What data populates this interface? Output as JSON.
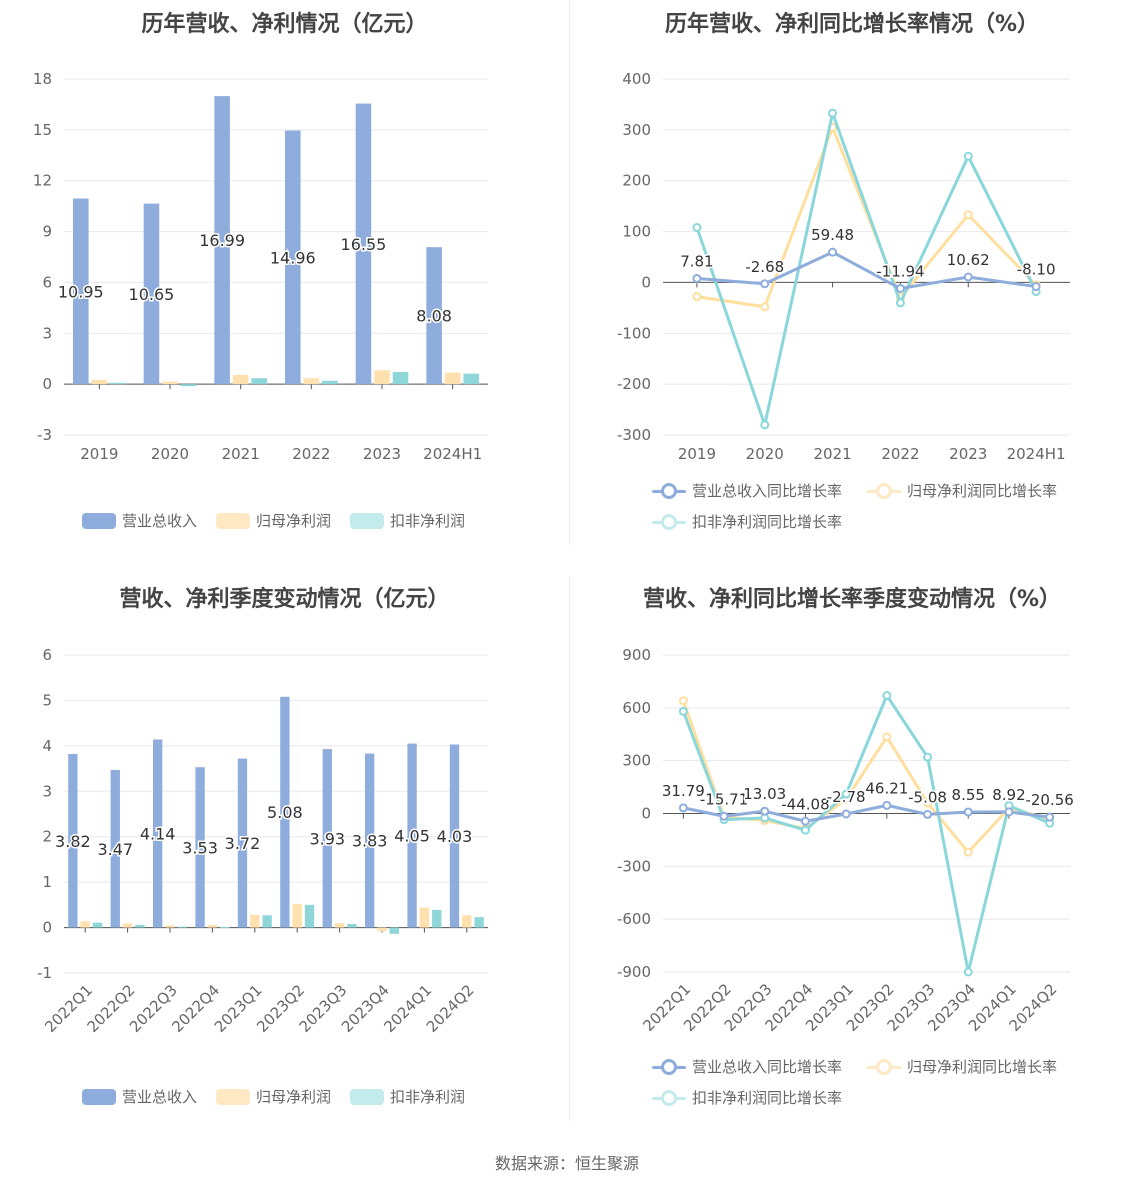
{
  "source_label": "数据来源：恒生聚源",
  "colors": {
    "revenue": "#8eaddc",
    "netprofit": "#ffe1b0",
    "deducted": "#8fd6d9",
    "rev_line": "#8eaddc",
    "np_line": "#ffdf9e",
    "dp_line": "#8ad7db"
  },
  "chart_data": [
    {
      "type": "bar",
      "title": "历年营收、净利情况（亿元）",
      "categories": [
        "2019",
        "2020",
        "2021",
        "2022",
        "2023",
        "2024H1"
      ],
      "yticks": [
        "18",
        "15",
        "12",
        "9",
        "6",
        "3",
        "0",
        "-3"
      ],
      "ylim": [
        -3,
        18
      ],
      "series": [
        {
          "name": "营业总收入",
          "values": [
            10.95,
            10.65,
            16.99,
            14.96,
            16.55,
            8.08
          ],
          "labels": [
            "10.95",
            "10.65",
            "16.99",
            "14.96",
            "16.55",
            "8.08"
          ]
        },
        {
          "name": "归母净利润",
          "values": [
            0.25,
            0.15,
            0.55,
            0.35,
            0.82,
            0.68
          ]
        },
        {
          "name": "扣非净利润",
          "values": [
            0.08,
            -0.12,
            0.35,
            0.2,
            0.72,
            0.62
          ]
        }
      ],
      "legend": "bottom"
    },
    {
      "type": "line",
      "title": "历年营收、净利同比增长率情况（%）",
      "categories": [
        "2019",
        "2020",
        "2021",
        "2022",
        "2023",
        "2024H1"
      ],
      "yticks": [
        "400",
        "300",
        "200",
        "100",
        "0",
        "-100",
        "-200",
        "-300"
      ],
      "ylim": [
        -300,
        400
      ],
      "series": [
        {
          "name": "营业总收入同比增长率",
          "values": [
            7.81,
            -2.68,
            59.48,
            -11.94,
            10.62,
            -8.1
          ],
          "labels": [
            "7.81",
            "-2.68",
            "59.48",
            "-11.94",
            "10.62",
            "-8.10"
          ]
        },
        {
          "name": "归母净利润同比增长率",
          "values": [
            -28,
            -48,
            305,
            -30,
            133,
            -5
          ]
        },
        {
          "name": "扣非净利润同比增长率",
          "values": [
            108,
            -280,
            333,
            -40,
            248,
            -18
          ]
        }
      ],
      "legend": "bottom"
    },
    {
      "type": "bar",
      "title": "营收、净利季度变动情况（亿元）",
      "categories": [
        "2022Q1",
        "2022Q2",
        "2022Q3",
        "2022Q4",
        "2023Q1",
        "2023Q2",
        "2023Q3",
        "2023Q4",
        "2024Q1",
        "2024Q2"
      ],
      "yticks": [
        "6",
        "5",
        "4",
        "3",
        "2",
        "1",
        "0",
        "-1"
      ],
      "ylim": [
        -1,
        6
      ],
      "series": [
        {
          "name": "营业总收入",
          "values": [
            3.82,
            3.47,
            4.14,
            3.53,
            3.72,
            5.08,
            3.93,
            3.83,
            4.05,
            4.03
          ],
          "labels": [
            "3.82",
            "3.47",
            "4.14",
            "3.53",
            "3.72",
            "5.08",
            "3.93",
            "3.83",
            "4.05",
            "4.03"
          ]
        },
        {
          "name": "归母净利润",
          "values": [
            0.14,
            0.09,
            0.05,
            0.06,
            0.28,
            0.52,
            0.1,
            -0.08,
            0.44,
            0.27
          ]
        },
        {
          "name": "扣非净利润",
          "values": [
            0.11,
            0.06,
            0.02,
            0.01,
            0.27,
            0.5,
            0.08,
            -0.14,
            0.39,
            0.23
          ]
        }
      ],
      "legend": "bottom"
    },
    {
      "type": "line",
      "title": "营收、净利同比增长率季度变动情况（%）",
      "categories": [
        "2022Q1",
        "2022Q2",
        "2022Q3",
        "2022Q4",
        "2023Q1",
        "2023Q2",
        "2023Q3",
        "2023Q4",
        "2024Q1",
        "2024Q2"
      ],
      "yticks": [
        "900",
        "600",
        "300",
        "0",
        "-300",
        "-600",
        "-900"
      ],
      "ylim": [
        -900,
        900
      ],
      "series": [
        {
          "name": "营业总收入同比增长率",
          "values": [
            31.79,
            -15.71,
            13.03,
            -44.08,
            -2.78,
            46.21,
            -5.08,
            8.55,
            8.92,
            -20.56
          ],
          "labels": [
            "31.79",
            "-15.71",
            "13.03",
            "-44.08",
            "-2.78",
            "46.21",
            "-5.08",
            "8.55",
            "8.92",
            "-20.56"
          ]
        },
        {
          "name": "归母净利润同比增长率",
          "values": [
            640,
            -20,
            -40,
            -85,
            80,
            435,
            60,
            -220,
            30,
            -30
          ]
        },
        {
          "name": "扣非净利润同比增长率",
          "values": [
            580,
            -35,
            -25,
            -95,
            110,
            670,
            320,
            -900,
            45,
            -55
          ]
        }
      ],
      "legend": "bottom"
    }
  ]
}
